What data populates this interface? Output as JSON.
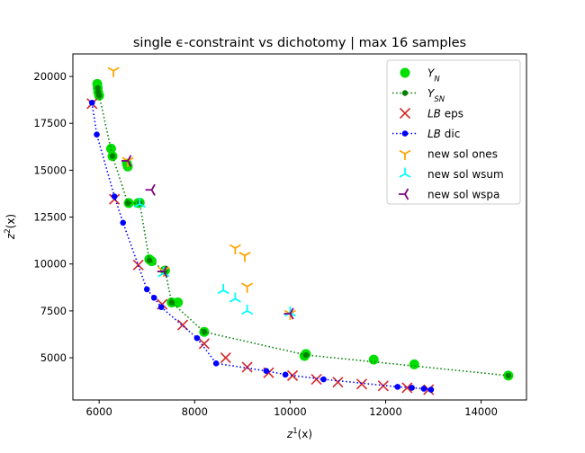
{
  "chart_data": {
    "type": "scatter",
    "title": "single ϵ-constraint vs dichotomy | max 16 samples",
    "xlabel": "z",
    "xlabel_sup": "1",
    "xlabel_suffix": "(x)",
    "ylabel": "z",
    "ylabel_sup": "2",
    "ylabel_suffix": "(x)",
    "xlim": [
      5450,
      14950
    ],
    "ylim": [
      2750,
      21200
    ],
    "xticks": [
      6000,
      8000,
      10000,
      12000,
      14000
    ],
    "xtick_labels": [
      "6000",
      "8000",
      "10000",
      "12000",
      "14000"
    ],
    "yticks": [
      5000,
      7500,
      10000,
      12500,
      15000,
      17500,
      20000
    ],
    "ytick_labels": [
      "5000",
      "7500",
      "10000",
      "12500",
      "15000",
      "17500",
      "20000"
    ],
    "grid": false,
    "legend_position": "top-right",
    "series": [
      {
        "name": "Y_N",
        "marker": "circle",
        "color": "#00e000",
        "x": [
          5960,
          5970,
          5980,
          6000,
          6250,
          6280,
          6580,
          6600,
          6620,
          6820,
          6850,
          7050,
          7100,
          7380,
          7520,
          7650,
          8200,
          10300,
          10330,
          11750,
          12600,
          14570
        ],
        "y": [
          19600,
          19380,
          19150,
          18980,
          16150,
          15750,
          15350,
          15200,
          13250,
          13250,
          13270,
          10250,
          10150,
          9650,
          7950,
          7950,
          6380,
          5100,
          5200,
          4900,
          4650,
          4050
        ]
      },
      {
        "name": "Y_SN",
        "marker": "circle-line",
        "color": "#008000",
        "line_color": "#008000",
        "x": [
          5970,
          5980,
          6000,
          6280,
          6600,
          6850,
          7050,
          7380,
          7520,
          8200,
          10330,
          14570
        ],
        "y": [
          19380,
          19150,
          18980,
          15750,
          13250,
          13250,
          10200,
          9650,
          7950,
          6380,
          5150,
          4050
        ]
      },
      {
        "name": "LB eps",
        "marker": "x",
        "color": "#d62728",
        "x": [
          5850,
          6320,
          6820,
          7320,
          7750,
          8200,
          8650,
          9100,
          9550,
          10050,
          10550,
          11000,
          11500,
          11950,
          12450,
          12900
        ],
        "y": [
          18550,
          13450,
          9950,
          7850,
          6750,
          5750,
          5000,
          4500,
          4200,
          4050,
          3850,
          3700,
          3600,
          3500,
          3400,
          3300
        ]
      },
      {
        "name": "LB dic",
        "marker": "dot-line",
        "color": "#0000ff",
        "x": [
          5850,
          5950,
          6320,
          6500,
          7000,
          7150,
          7300,
          8050,
          8450,
          9500,
          9900,
          10700,
          12250,
          12550,
          12800,
          12950
        ],
        "y": [
          18600,
          16900,
          13600,
          12200,
          8650,
          8200,
          7700,
          6050,
          4700,
          4300,
          4100,
          3850,
          3450,
          3400,
          3350,
          3300
        ]
      },
      {
        "name": "new sol ones",
        "marker": "tri_down",
        "color": "#ffa500",
        "x": [
          6300,
          6600,
          7350,
          8850,
          9050,
          9100,
          10000
        ],
        "y": [
          20300,
          15500,
          9650,
          10850,
          10450,
          8800,
          7350
        ]
      },
      {
        "name": "new sol wsum",
        "marker": "tri_up",
        "color": "#00ffff",
        "x": [
          6850,
          7350,
          8600,
          8850,
          9100,
          10000
        ],
        "y": [
          13200,
          9500,
          8600,
          8150,
          7500,
          7400
        ]
      },
      {
        "name": "new sol wspa",
        "marker": "tri_left",
        "color": "#800080",
        "x": [
          6600,
          7100,
          7350,
          10000
        ],
        "y": [
          15500,
          13950,
          9600,
          7350
        ]
      }
    ],
    "legend": [
      {
        "label": "Y",
        "sub": "N",
        "italic": true,
        "suffix": ""
      },
      {
        "label": "Y",
        "sub": "SN",
        "italic": true,
        "suffix": ""
      },
      {
        "label": "LB",
        "sub": "",
        "italic": true,
        "suffix": " eps"
      },
      {
        "label": "LB",
        "sub": "",
        "italic": true,
        "suffix": " dic"
      },
      {
        "label": "",
        "sub": "",
        "italic": false,
        "suffix": "new sol ones"
      },
      {
        "label": "",
        "sub": "",
        "italic": false,
        "suffix": "new sol wsum"
      },
      {
        "label": "",
        "sub": "",
        "italic": false,
        "suffix": "new sol wspa"
      }
    ]
  }
}
